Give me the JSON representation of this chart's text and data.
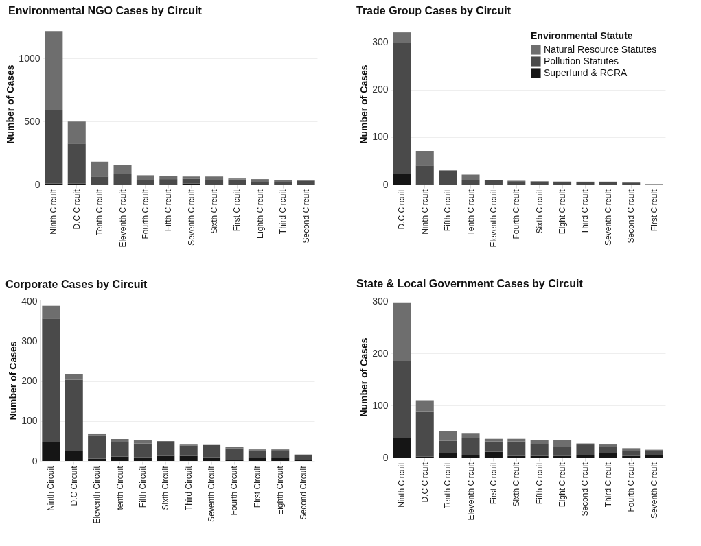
{
  "chart_data": [
    {
      "type": "bar",
      "title": "Environmental NGO Cases by Circuit",
      "ylabel": "Number of Cases",
      "stacked": true,
      "grid": "y",
      "categories": [
        "Ninth Circuit",
        "D.C Circuit",
        "Tenth Circuit",
        "Eleventh Circuit",
        "Fourth Circuit",
        "Fifth Circuit",
        "Seventh Circuit",
        "Sixth Circuit",
        "First Circuit",
        "Eighth Circuit",
        "Third Circuit",
        "Second Circuit"
      ],
      "ylim": [
        0,
        1280
      ],
      "yticks": [
        0,
        500,
        1000
      ],
      "series": [
        {
          "color": "#151515",
          "values": [
            8,
            7,
            0,
            0,
            0,
            0,
            7,
            0,
            0,
            0,
            0,
            0
          ]
        },
        {
          "color": "#4a4a4a",
          "values": [
            583,
            319,
            64,
            86,
            33,
            43,
            40,
            38,
            41,
            21,
            21,
            28
          ]
        },
        {
          "color": "#6e6e6e",
          "values": [
            628,
            174,
            117,
            67,
            41,
            24,
            17,
            26,
            7,
            22,
            17,
            10
          ]
        }
      ]
    },
    {
      "type": "bar",
      "title": "Trade Group Cases by Circuit",
      "ylabel": "Number of Cases",
      "stacked": true,
      "grid": "y",
      "legend": "top right",
      "legend_title": "Environmental Statute",
      "categories": [
        "D.C Circuit",
        "Ninth Circuit",
        "Fifth Circuit",
        "Tenth Circuit",
        "Eleventh Circuit",
        "Fourth Circuit",
        "Sixth Circuit",
        "Eight Circuit",
        "Third Circuit",
        "Seventh Circuit",
        "Second Circuit",
        "First Circuit"
      ],
      "ylim": [
        0,
        340
      ],
      "yticks": [
        0,
        100,
        200,
        300
      ],
      "series": [
        {
          "name": "Superfund & RCRA",
          "color": "#151515",
          "values": [
            23,
            1,
            0,
            0,
            0,
            0,
            0,
            0,
            0,
            0,
            0,
            0
          ]
        },
        {
          "name": "Pollution Statutes",
          "color": "#4a4a4a",
          "values": [
            275,
            39,
            28,
            9,
            9,
            7,
            6,
            6,
            5,
            6,
            4,
            0
          ]
        },
        {
          "name": "Natural Resource Statutes",
          "color": "#6e6e6e",
          "values": [
            23,
            31,
            2,
            12,
            1,
            1,
            1,
            0,
            1,
            0,
            0,
            1
          ]
        }
      ]
    },
    {
      "type": "bar",
      "title": "Corporate Cases by Circuit",
      "ylabel": "Number of Cases",
      "stacked": true,
      "grid": "y",
      "categories": [
        "Ninth Circuit",
        "D.C Circuit",
        "Eleventh Circuit",
        "tenth Circuit",
        "Fifth Circuit",
        "Sixth Circuit",
        "Third Circuit",
        "Seventh Circuit",
        "Fourth Circuit",
        "First Circuit",
        "Eighth Circuit",
        "Second Circuit"
      ],
      "ylim": [
        0,
        405
      ],
      "yticks": [
        0,
        100,
        200,
        300,
        400
      ],
      "series": [
        {
          "color": "#151515",
          "values": [
            47,
            25,
            6,
            11,
            9,
            13,
            13,
            9,
            3,
            8,
            8,
            2
          ]
        },
        {
          "color": "#4a4a4a",
          "values": [
            311,
            179,
            58,
            36,
            35,
            35,
            26,
            31,
            29,
            19,
            17,
            14
          ]
        },
        {
          "color": "#6e6e6e",
          "values": [
            32,
            15,
            5,
            8,
            8,
            2,
            2,
            0,
            4,
            2,
            4,
            0
          ]
        }
      ]
    },
    {
      "type": "bar",
      "title": "State & Local Government Cases by Circuit",
      "ylabel": "Number of Cases",
      "stacked": true,
      "grid": "y",
      "categories": [
        "Ninth Circuit",
        "D.C Circuit",
        "Tenth Circuit",
        "Eleventh Circuit",
        "First Circuit",
        "Sixth Circuit",
        "Fifth Circuit",
        "Eight Circuit",
        "Second Circuit",
        "Third Circuit",
        "Fourth Circuit",
        "Seventh Circuit"
      ],
      "ylim": [
        0,
        310
      ],
      "yticks": [
        0,
        100,
        200,
        300
      ],
      "series": [
        {
          "color": "#151515",
          "values": [
            38,
            2,
            8,
            5,
            11,
            3,
            3,
            3,
            5,
            8,
            3,
            5
          ]
        },
        {
          "color": "#4a4a4a",
          "values": [
            148,
            87,
            24,
            32,
            20,
            28,
            23,
            18,
            20,
            12,
            10,
            8
          ]
        },
        {
          "color": "#6e6e6e",
          "values": [
            111,
            21,
            19,
            10,
            5,
            5,
            8,
            12,
            2,
            5,
            5,
            2
          ]
        }
      ]
    }
  ]
}
